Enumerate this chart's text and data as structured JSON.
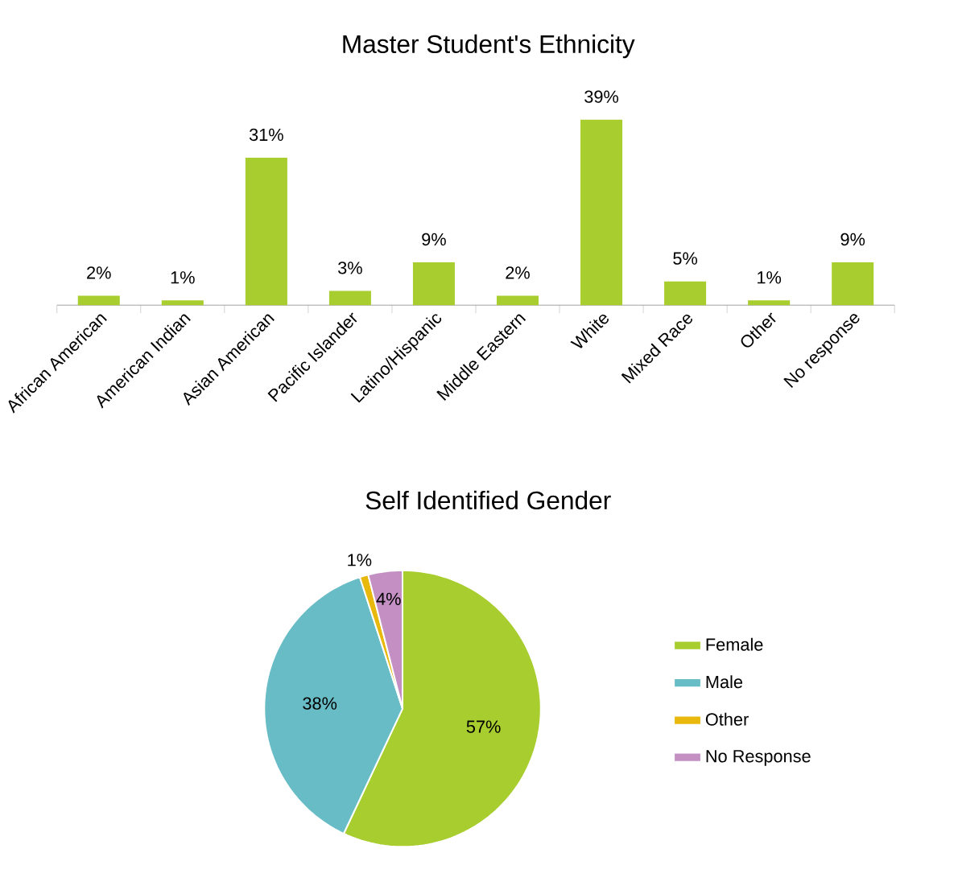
{
  "chart_data": [
    {
      "type": "bar",
      "title": "Master Student's Ethnicity",
      "categories": [
        "African American",
        "American Indian",
        "Asian American",
        "Pacific Islander",
        "Latino/Hispanic",
        "Middle Eastern",
        "White",
        "Mixed Race",
        "Other",
        "No response"
      ],
      "values": [
        2,
        1,
        31,
        3,
        9,
        2,
        39,
        5,
        1,
        9
      ],
      "value_labels": [
        "2%",
        "1%",
        "31%",
        "3%",
        "9%",
        "2%",
        "39%",
        "5%",
        "1%",
        "9%"
      ],
      "color": "#a8cd2e"
    },
    {
      "type": "pie",
      "title": "Self Identified Gender",
      "categories": [
        "Female",
        "Male",
        "Other",
        "No Response"
      ],
      "values": [
        57,
        38,
        1,
        4
      ],
      "value_labels": [
        "57%",
        "38%",
        "1%",
        "4%"
      ],
      "colors": [
        "#a8cd2e",
        "#68bcc6",
        "#e8b80c",
        "#c490c4"
      ],
      "legend": "right"
    }
  ]
}
